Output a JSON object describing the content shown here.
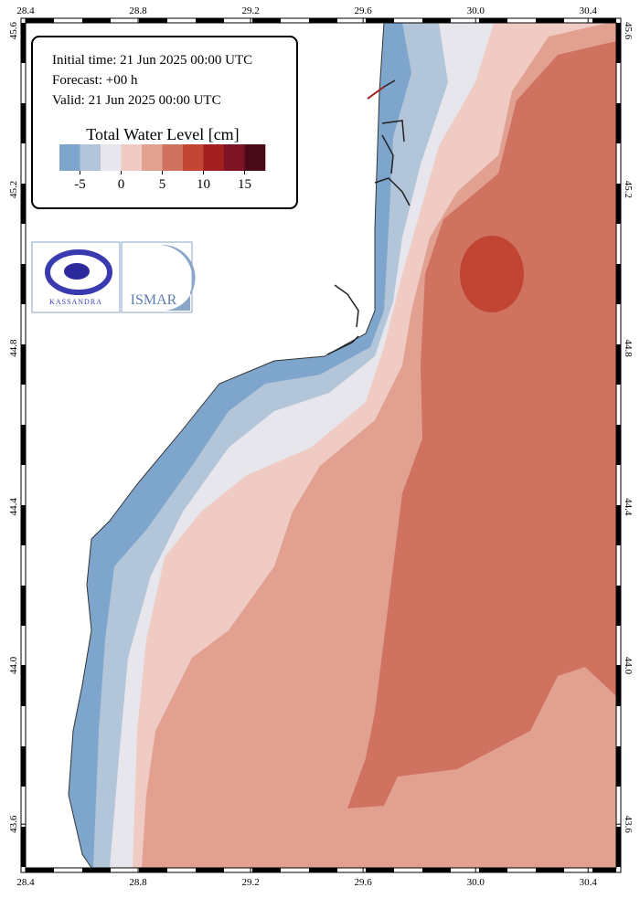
{
  "info": {
    "initial_time": "Initial time: 21 Jun 2025 00:00 UTC",
    "forecast": "Forecast: +00 h",
    "valid": "Valid: 21 Jun 2025 00:00 UTC"
  },
  "legend": {
    "title": "Total Water Level [cm]",
    "lim": [
      -7.5,
      17.5
    ],
    "colors": [
      "#7ea6cc",
      "#b3c5d8",
      "#e6e6ec",
      "#efcbc3",
      "#e2a090",
      "#cf7260",
      "#c24534",
      "#a31f1f",
      "#7d1425",
      "#4a0b18"
    ],
    "ticks": [
      -5,
      0,
      5,
      10,
      15
    ]
  },
  "map": {
    "xlim": [
      28.4,
      30.5
    ],
    "ylim": [
      43.49,
      45.62
    ],
    "xticks": [
      28.4,
      28.8,
      29.2,
      29.6,
      {
        "value": 30,
        "label": "30.0"
      },
      30.4
    ],
    "yticks": [
      43.6,
      {
        "value": 44,
        "label": "44.0"
      },
      44.4,
      44.8,
      45.2,
      45.6
    ]
  },
  "logos": {
    "left": "KASSANDRA",
    "right": "ISMAR"
  }
}
